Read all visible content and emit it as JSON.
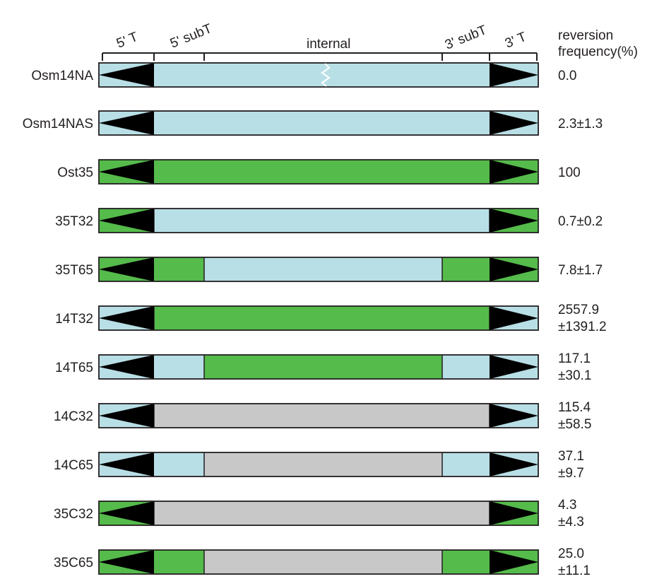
{
  "colors": {
    "light_blue": "#b9dfe6",
    "green": "#55bb4b",
    "gray": "#c8c8c8",
    "black": "#000000",
    "outline": "#231f20"
  },
  "header": {
    "regions": [
      "5' T",
      "5' subT",
      "internal",
      "3' subT",
      "3' T"
    ],
    "value_title_line1": "reversion",
    "value_title_line2": "frequency(%)"
  },
  "rows": [
    {
      "name": "Osm14NA",
      "fill": [
        "blue",
        "blue",
        "blue",
        "blue",
        "blue",
        "blue",
        "blue"
      ],
      "break": true,
      "value": [
        "0.0"
      ]
    },
    {
      "name": "Osm14NAS",
      "fill": [
        "blue",
        "blue",
        "blue",
        "blue",
        "blue",
        "blue",
        "blue"
      ],
      "break": false,
      "value": [
        "2.3±1.3"
      ]
    },
    {
      "name": "Ost35",
      "fill": [
        "green",
        "green",
        "green",
        "green",
        "green",
        "green",
        "green"
      ],
      "break": false,
      "value": [
        "100"
      ]
    },
    {
      "name": "35T32",
      "fill": [
        "green",
        "green",
        "blue",
        "blue",
        "blue",
        "green",
        "green"
      ],
      "break": false,
      "value": [
        "0.7±0.2"
      ]
    },
    {
      "name": "35T65",
      "fill": [
        "green",
        "green",
        "green",
        "blue",
        "green",
        "green",
        "green"
      ],
      "break": false,
      "value": [
        "7.8±1.7"
      ]
    },
    {
      "name": "14T32",
      "fill": [
        "blue",
        "blue",
        "green",
        "green",
        "green",
        "blue",
        "blue"
      ],
      "break": false,
      "value": [
        "2557.9",
        "±1391.2"
      ]
    },
    {
      "name": "14T65",
      "fill": [
        "blue",
        "blue",
        "blue",
        "green",
        "blue",
        "blue",
        "blue"
      ],
      "break": false,
      "value": [
        "117.1",
        "±30.1"
      ]
    },
    {
      "name": "14C32",
      "fill": [
        "blue",
        "blue",
        "gray",
        "gray",
        "gray",
        "blue",
        "blue"
      ],
      "break": false,
      "value": [
        "115.4",
        "±58.5"
      ]
    },
    {
      "name": "14C65",
      "fill": [
        "blue",
        "blue",
        "blue",
        "gray",
        "blue",
        "blue",
        "blue"
      ],
      "break": false,
      "value": [
        "37.1",
        "±9.7"
      ]
    },
    {
      "name": "35C32",
      "fill": [
        "green",
        "green",
        "gray",
        "gray",
        "gray",
        "green",
        "green"
      ],
      "break": false,
      "value": [
        "4.3",
        "±4.3"
      ]
    },
    {
      "name": "35C65",
      "fill": [
        "green",
        "green",
        "green",
        "gray",
        "green",
        "green",
        "green"
      ],
      "break": false,
      "value": [
        "25.0",
        "±11.1"
      ]
    }
  ]
}
